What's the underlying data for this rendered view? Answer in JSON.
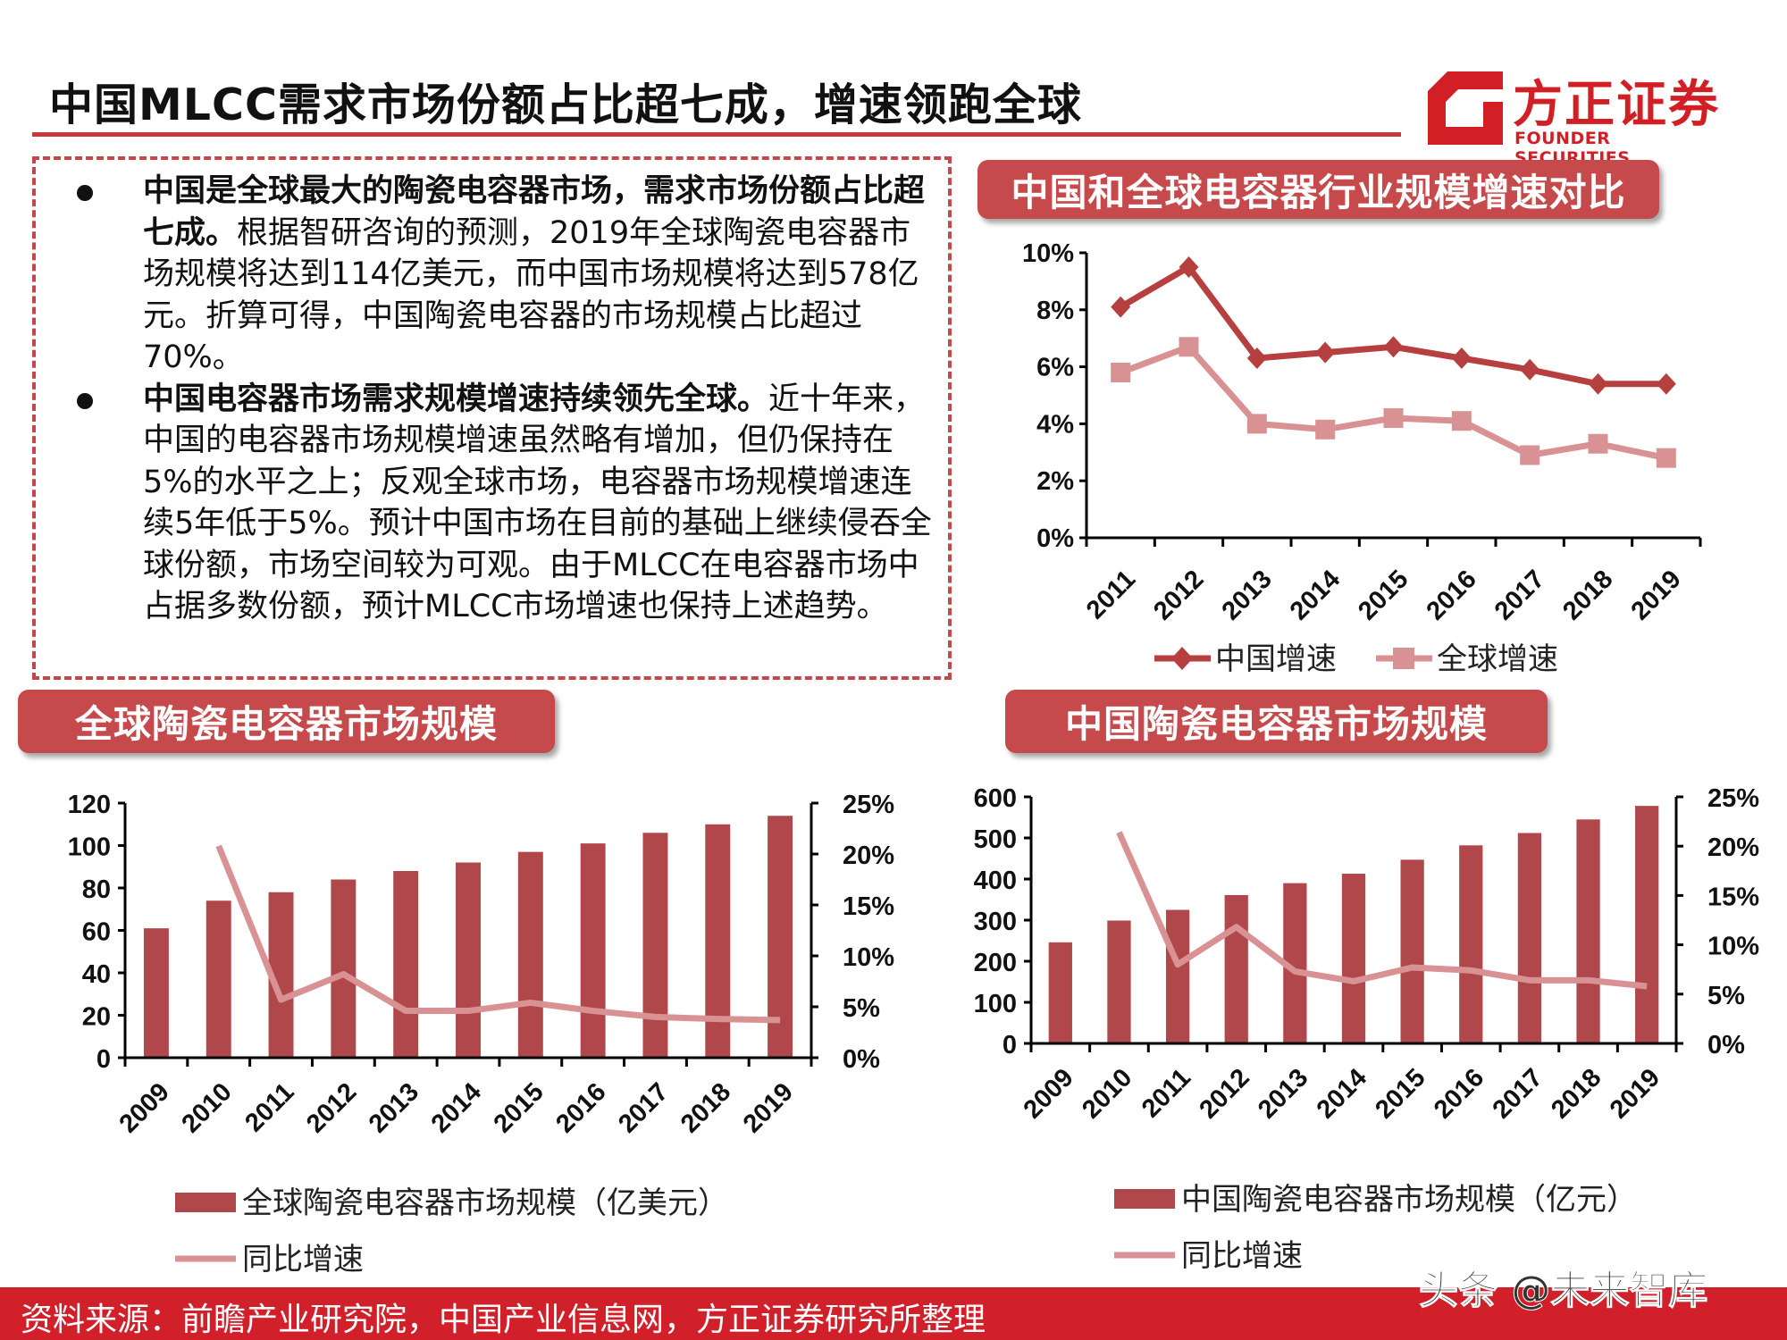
{
  "title": "中国MLCC需求市场份额占比超七成，增速领跑全球",
  "logo": {
    "cn": "方正证券",
    "en": "FOUNDER SECURITIES"
  },
  "bullets": [
    {
      "bold": "中国是全球最大的陶瓷电容器市场，需求市场份额占比超七成。",
      "text": "根据智研咨询的预测，2019年全球陶瓷电容器市场规模将达到114亿美元，而中国市场规模将达到578亿元。折算可得，中国陶瓷电容器的市场规模占比超过70%。"
    },
    {
      "bold": "中国电容器市场需求规模增速持续领先全球。",
      "text": "近十年来，中国的电容器市场规模增速虽然略有增加，但仍保持在5%的水平之上；反观全球市场，电容器市场规模增速连续5年低于5%。预计中国市场在目前的基础上继续侵吞全球份额，市场空间较为可观。由于MLCC在电容器市场中占据多数份额，预计MLCC市场增速也保持上述趋势。"
    }
  ],
  "headers": {
    "growth": "中国和全球电容器行业规模增速对比",
    "global": "全球陶瓷电容器市场规模",
    "china": "中国陶瓷电容器市场规模"
  },
  "colors": {
    "accent": "#c64a4c",
    "bar": "#b0474a",
    "line_light": "#d99293",
    "line_dark": "#b5403f",
    "footer": "#d2202a"
  },
  "chart_data": [
    {
      "type": "line",
      "title": "中国和全球电容器行业规模增速对比",
      "categories": [
        "2011",
        "2012",
        "2013",
        "2014",
        "2015",
        "2016",
        "2017",
        "2018",
        "2019"
      ],
      "series": [
        {
          "name": "中国增速",
          "marker": "diamond",
          "values": [
            8.1,
            9.5,
            6.3,
            6.5,
            6.7,
            6.3,
            5.9,
            5.4,
            5.4
          ]
        },
        {
          "name": "全球增速",
          "marker": "square",
          "values": [
            5.8,
            6.7,
            4.0,
            3.8,
            4.2,
            4.1,
            2.9,
            3.3,
            2.8
          ]
        }
      ],
      "ylim": [
        0,
        10
      ],
      "yticks": [
        "0%",
        "2%",
        "4%",
        "6%",
        "8%",
        "10%"
      ],
      "legend": "bottom"
    },
    {
      "type": "bar",
      "title": "全球陶瓷电容器市场规模",
      "categories": [
        "2009",
        "2010",
        "2011",
        "2012",
        "2013",
        "2014",
        "2015",
        "2016",
        "2017",
        "2018",
        "2019"
      ],
      "series": [
        {
          "name": "全球陶瓷电容器市场规模（亿美元）",
          "type": "bar",
          "axis": "left",
          "values": [
            61,
            74,
            78,
            84,
            88,
            92,
            97,
            101,
            106,
            110,
            114
          ]
        },
        {
          "name": "同比增速",
          "type": "line",
          "axis": "right",
          "values": [
            null,
            20.8,
            5.7,
            8.2,
            4.6,
            4.6,
            5.4,
            4.6,
            4.0,
            3.8,
            3.7
          ]
        }
      ],
      "ylim": [
        0,
        120
      ],
      "y2lim": [
        0,
        25
      ],
      "yticks": [
        "0",
        "20",
        "40",
        "60",
        "80",
        "100",
        "120"
      ],
      "y2ticks": [
        "0%",
        "5%",
        "10%",
        "15%",
        "20%",
        "25%"
      ],
      "legend": "bottom"
    },
    {
      "type": "bar",
      "title": "中国陶瓷电容器市场规模",
      "categories": [
        "2009",
        "2010",
        "2011",
        "2012",
        "2013",
        "2014",
        "2015",
        "2016",
        "2017",
        "2018",
        "2019"
      ],
      "series": [
        {
          "name": "中国陶瓷电容器市场规模（亿元）",
          "type": "bar",
          "axis": "left",
          "values": [
            246,
            299,
            325,
            361,
            390,
            413,
            447,
            482,
            512,
            545,
            578
          ]
        },
        {
          "name": "同比增速",
          "type": "line",
          "axis": "right",
          "values": [
            null,
            21.4,
            8.0,
            11.8,
            7.3,
            6.3,
            7.7,
            7.4,
            6.4,
            6.4,
            5.8
          ]
        }
      ],
      "ylim": [
        0,
        600
      ],
      "y2lim": [
        0,
        25
      ],
      "yticks": [
        "0",
        "100",
        "200",
        "300",
        "400",
        "500",
        "600"
      ],
      "y2ticks": [
        "0%",
        "5%",
        "10%",
        "15%",
        "20%",
        "25%"
      ],
      "legend": "bottom"
    }
  ],
  "footer": "资料来源：前瞻产业研究院，中国产业信息网，方正证券研究所整理",
  "watermark": "头条 @未来智库"
}
